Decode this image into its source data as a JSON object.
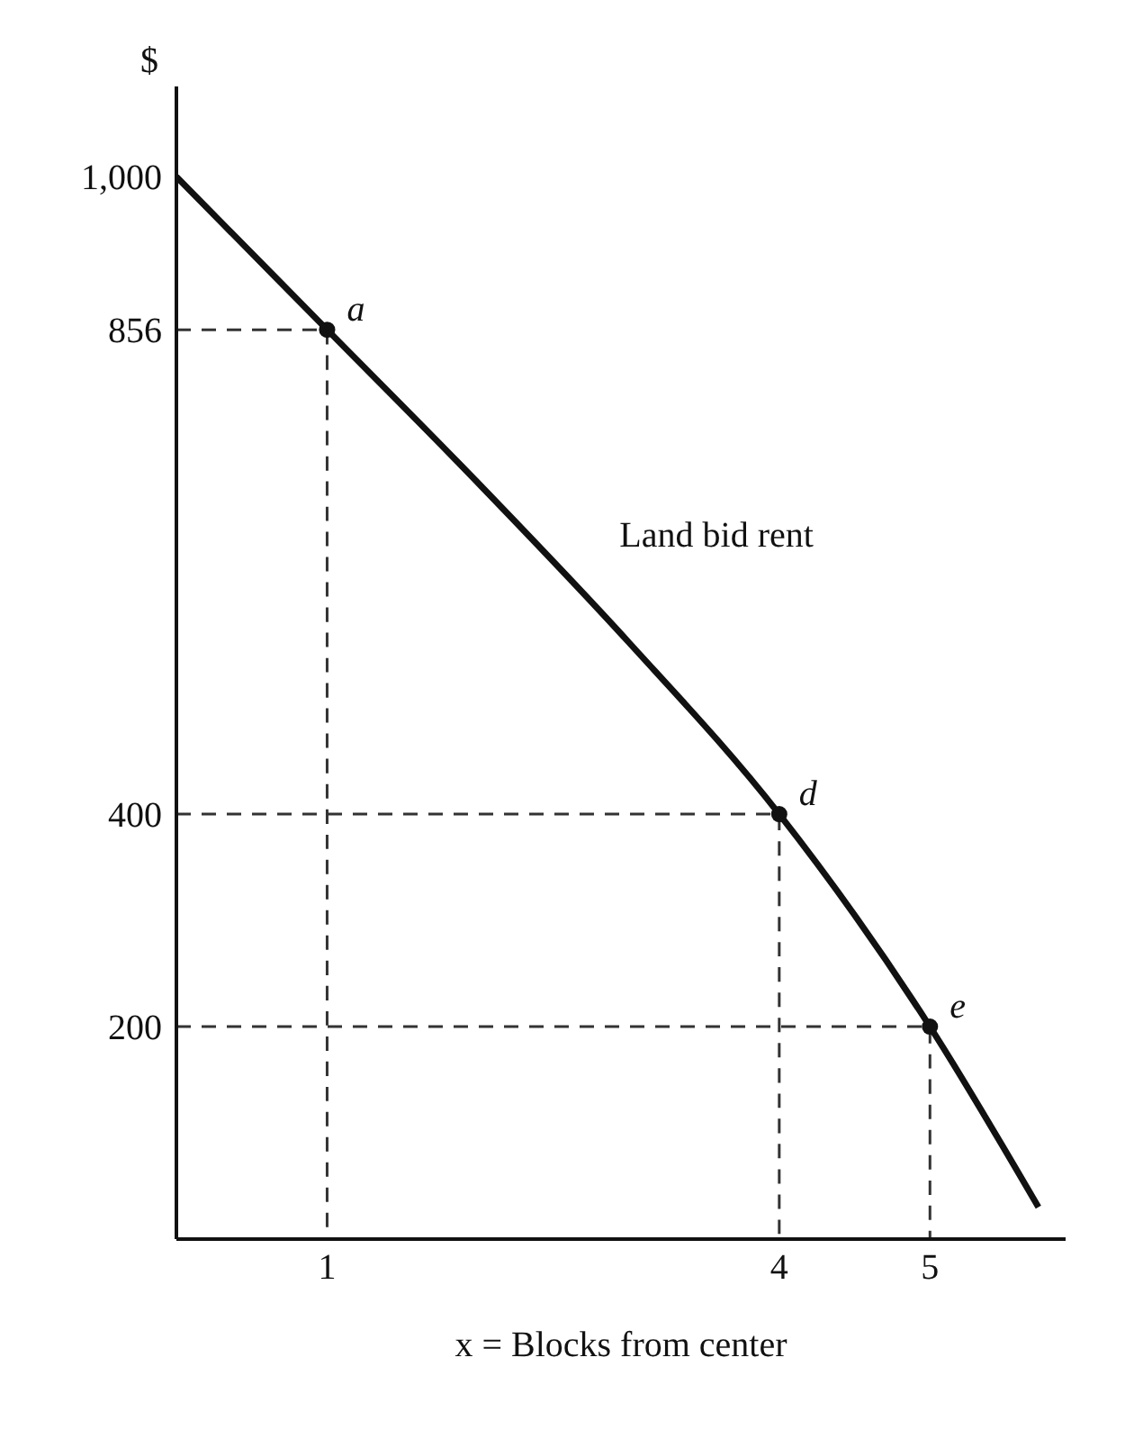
{
  "chart_data": {
    "type": "line",
    "xlabel": "x = Blocks from center",
    "ylabel": "$",
    "xlim": [
      0,
      5.9
    ],
    "ylim": [
      0,
      1085
    ],
    "xticks": [
      1,
      4,
      5
    ],
    "yticks": [
      {
        "value": 1000,
        "label": "1,000"
      },
      856,
      400,
      200
    ],
    "series": [
      {
        "name": "Land bid rent",
        "color": "#111111",
        "x": [
          0,
          1,
          2,
          3,
          4,
          5,
          5.72
        ],
        "values": [
          1000,
          856,
          712,
          562,
          400,
          200,
          30
        ],
        "marker": "none",
        "line_style": "solid"
      },
      {
        "type": "scatter",
        "color": "#111111",
        "x": [
          1,
          4,
          5
        ],
        "values": [
          856,
          400,
          200
        ],
        "marker": "circle"
      },
      {
        "color": "#333333",
        "x": [
          0,
          1,
          1
        ],
        "values": [
          856,
          856,
          0
        ],
        "marker": "none",
        "line_style": "dashed"
      },
      {
        "color": "#333333",
        "x": [
          0,
          4,
          4
        ],
        "values": [
          400,
          400,
          0
        ],
        "marker": "none",
        "line_style": "dashed"
      },
      {
        "color": "#333333",
        "x": [
          0,
          5,
          5
        ],
        "values": [
          200,
          200,
          0
        ],
        "marker": "none",
        "line_style": "dashed"
      }
    ],
    "annotations": [
      {
        "text": "a",
        "x": 1,
        "y": 856
      },
      {
        "text": "d",
        "x": 4,
        "y": 400
      },
      {
        "text": "e",
        "x": 5,
        "y": 200
      }
    ]
  }
}
